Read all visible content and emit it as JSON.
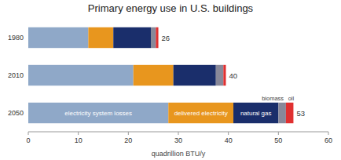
{
  "chart_data": {
    "type": "bar",
    "orientation": "horizontal",
    "stacked": true,
    "title": "Primary energy use in U.S. buildings",
    "x_label": "quadrillion BTU/y",
    "categories": [
      "1980",
      "2010",
      "2050"
    ],
    "series": [
      {
        "name": "electricity system losses",
        "color": "#8fa8c8",
        "values": [
          12.0,
          21.0,
          28.0
        ]
      },
      {
        "name": "delivered electricity",
        "color": "#e8961e",
        "values": [
          5.0,
          8.0,
          13.0
        ]
      },
      {
        "name": "natural gas",
        "color": "#1a2e6b",
        "values": [
          7.5,
          8.5,
          9.0
        ]
      },
      {
        "name": "biomass",
        "color": "#888899",
        "values": [
          1.0,
          1.5,
          1.5
        ]
      },
      {
        "name": "oil",
        "color": "#e03030",
        "values": [
          0.5,
          0.5,
          1.5
        ]
      }
    ],
    "totals": [
      26,
      40,
      53
    ],
    "xlim": [
      0,
      60
    ],
    "xticks": [
      0,
      10,
      20,
      30,
      40,
      50,
      60
    ]
  }
}
